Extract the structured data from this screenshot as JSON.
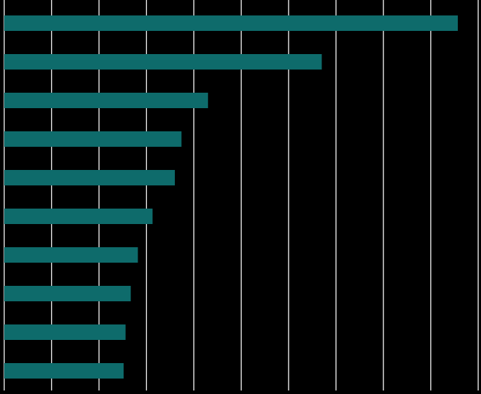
{
  "chart_data": {
    "type": "bar",
    "orientation": "horizontal",
    "categories": [
      "",
      "",
      "",
      "",
      "",
      "",
      "",
      "",
      "",
      ""
    ],
    "values": [
      9.57,
      6.7,
      4.3,
      3.74,
      3.6,
      3.13,
      2.82,
      2.67,
      2.56,
      2.52
    ],
    "xlim": [
      0,
      10
    ],
    "xticks": [
      0,
      1,
      2,
      3,
      4,
      5,
      6,
      7,
      8,
      9,
      10
    ],
    "grid": "vertical",
    "title": "",
    "xlabel": "",
    "ylabel": ""
  },
  "colors": {
    "background": "#000000",
    "bar": "#0e6b6b",
    "grid": "#ffffff"
  }
}
